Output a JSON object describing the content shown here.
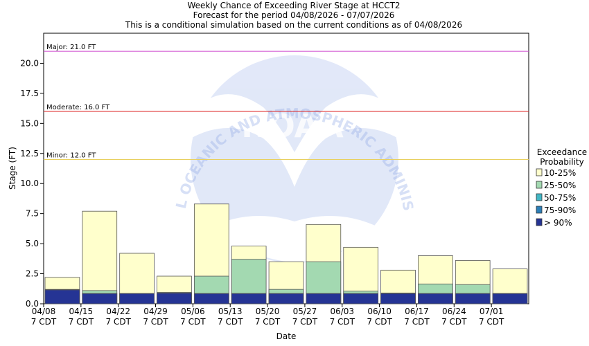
{
  "header": {
    "title": "Weekly Chance of Exceeding River Stage at HCCT2",
    "subtitle1": "Forecast for the period 04/08/2026 - 07/07/2026",
    "subtitle2": "This is a conditional simulation based on the current conditions as of 04/08/2026"
  },
  "watermark": {
    "agency_text": "NATIONAL OCEANIC AND ATMOSPHERIC ADMINISTRATION",
    "logo_text": "NOAA"
  },
  "chart_data": {
    "type": "bar",
    "title": "Weekly Chance of Exceeding River Stage at HCCT2",
    "xlabel": "Date",
    "ylabel": "Stage (FT)",
    "ylim": [
      0,
      22.5
    ],
    "y_ticks": [
      "0.0",
      "2.5",
      "5.0",
      "7.5",
      "10.0",
      "12.5",
      "15.0",
      "17.5",
      "20.0"
    ],
    "x_tick_labels": [
      {
        "date": "04/08",
        "tz": "7 CDT"
      },
      {
        "date": "04/15",
        "tz": "7 CDT"
      },
      {
        "date": "04/22",
        "tz": "7 CDT"
      },
      {
        "date": "04/29",
        "tz": "7 CDT"
      },
      {
        "date": "05/06",
        "tz": "7 CDT"
      },
      {
        "date": "05/13",
        "tz": "7 CDT"
      },
      {
        "date": "05/20",
        "tz": "7 CDT"
      },
      {
        "date": "05/27",
        "tz": "7 CDT"
      },
      {
        "date": "06/03",
        "tz": "7 CDT"
      },
      {
        "date": "06/10",
        "tz": "7 CDT"
      },
      {
        "date": "06/17",
        "tz": "7 CDT"
      },
      {
        "date": "06/24",
        "tz": "7 CDT"
      },
      {
        "date": "07/01",
        "tz": "7 CDT"
      }
    ],
    "grid": false,
    "legend": {
      "title_line1": "Exceedance",
      "title_line2": "Probability",
      "placement": "right"
    },
    "thresholds": [
      {
        "label": "Major: 21.0 FT",
        "value": 21.0,
        "color": "#cc44cc"
      },
      {
        "label": "Moderate: 16.0 FT",
        "value": 16.0,
        "color": "#dd2222"
      },
      {
        "label": "Minor: 12.0 FT",
        "value": 12.0,
        "color": "#e8d060"
      }
    ],
    "series": [
      {
        "name": "10-25%",
        "color": "#ffffcc",
        "values": [
          2.2,
          7.7,
          4.2,
          2.3,
          8.3,
          4.8,
          3.5,
          6.6,
          4.7,
          2.8,
          4.0,
          3.6,
          2.9
        ]
      },
      {
        "name": "25-50%",
        "color": "#a3d9b1",
        "values": [
          1.2,
          1.1,
          0.85,
          0.95,
          2.3,
          3.7,
          1.2,
          3.5,
          1.05,
          0.9,
          1.65,
          1.6,
          0.85
        ]
      },
      {
        "name": "50-75%",
        "color": "#41b6c4",
        "values": [
          1.15,
          0.85,
          0.85,
          0.9,
          0.85,
          0.85,
          0.85,
          0.85,
          0.85,
          0.85,
          0.85,
          0.85,
          0.85
        ]
      },
      {
        "name": "75-90%",
        "color": "#2c7fb8",
        "values": [
          1.15,
          0.85,
          0.85,
          0.88,
          0.85,
          0.85,
          0.85,
          0.85,
          0.85,
          0.85,
          0.85,
          0.85,
          0.85
        ]
      },
      {
        "name": "> 90%",
        "color": "#253494",
        "values": [
          1.15,
          0.85,
          0.85,
          0.88,
          0.85,
          0.85,
          0.85,
          0.85,
          0.85,
          0.85,
          0.85,
          0.85,
          0.85
        ]
      }
    ]
  }
}
